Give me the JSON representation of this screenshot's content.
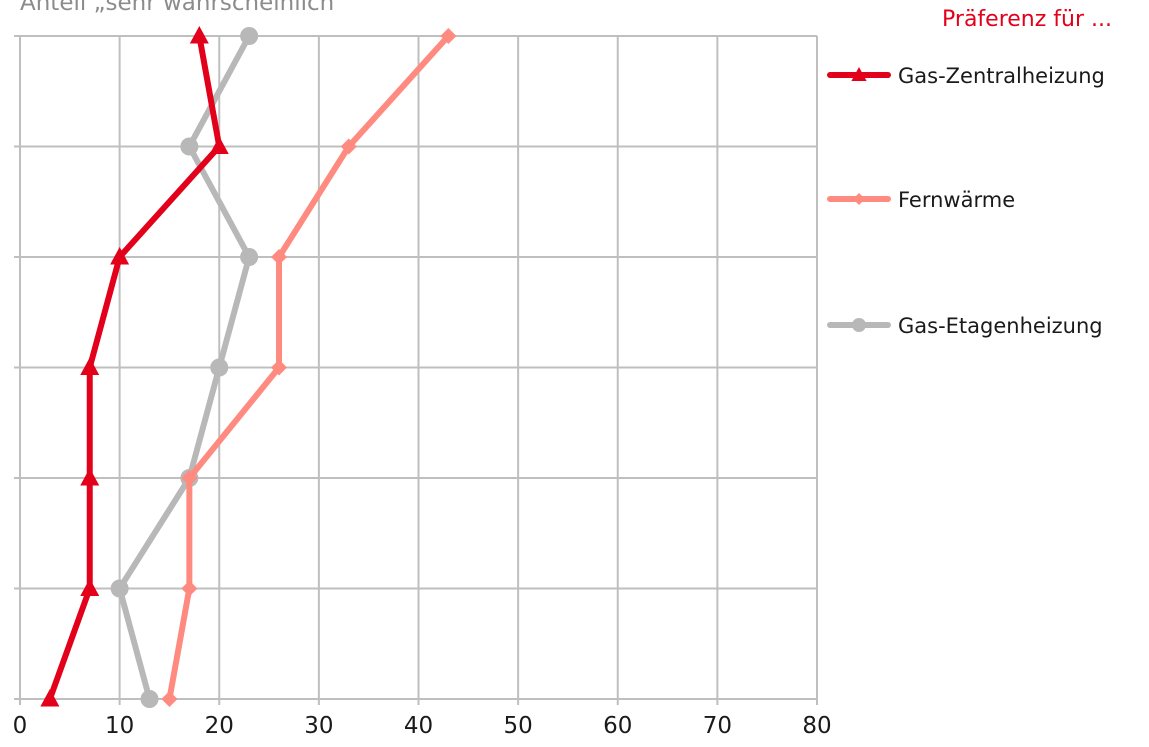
{
  "chart_data": {
    "type": "line",
    "title": "Anteil „sehr wahrscheinlich“",
    "legend_title": "Präferenz für ...",
    "legend_placement": "right",
    "grid": true,
    "xlim": [
      0,
      80
    ],
    "x_ticks": [
      0,
      10,
      20,
      30,
      40,
      50,
      60,
      70,
      80
    ],
    "rows": 7,
    "orientation": "horizontal-values",
    "series": [
      {
        "name": "Gas-Zentralheizung",
        "color": "#e2001a",
        "marker": "triangle",
        "values": [
          18,
          20,
          10,
          7,
          7,
          7,
          3
        ]
      },
      {
        "name": "Fernwärme",
        "color": "#ff8a80",
        "marker": "diamond",
        "values": [
          43,
          33,
          26,
          26,
          17,
          17,
          15
        ]
      },
      {
        "name": "Gas-Etagenheizung",
        "color": "#b8b8b8",
        "marker": "circle",
        "values": [
          23,
          17,
          23,
          20,
          17,
          10,
          13
        ]
      }
    ]
  },
  "colors": {
    "grid": "#bfbfbf",
    "legend_title": "#e2001a",
    "title": "#8c8c8c"
  }
}
